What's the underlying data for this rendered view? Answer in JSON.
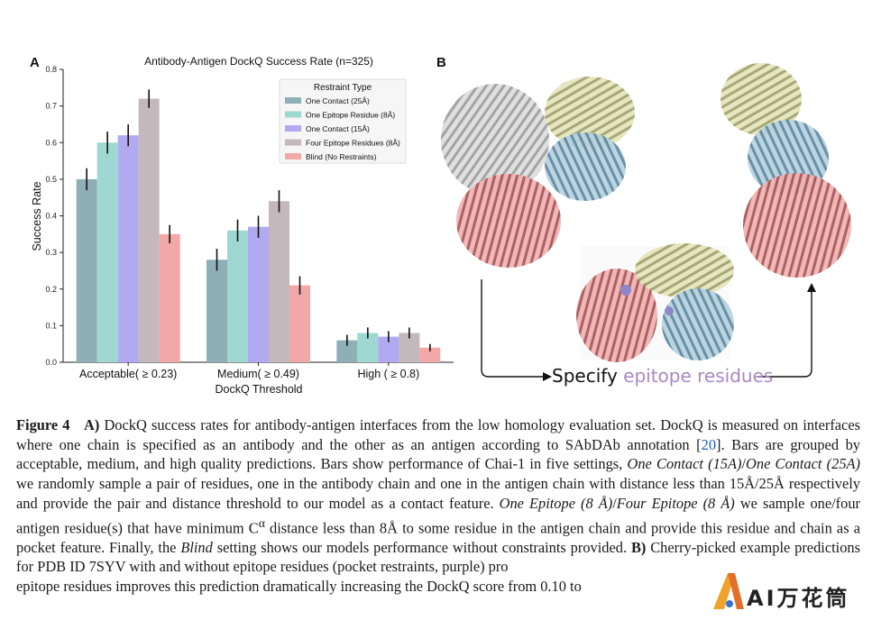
{
  "panel_a_letter": "A",
  "panel_b_letter": "B",
  "chart_data": {
    "type": "bar",
    "title": "Antibody-Antigen DockQ Success Rate (n=325)",
    "xlabel": "DockQ Threshold",
    "ylabel": "Success Rate",
    "ylim": [
      0,
      0.8
    ],
    "yticks": [
      "0.0",
      "0.1",
      "0.2",
      "0.3",
      "0.4",
      "0.5",
      "0.6",
      "0.7",
      "0.8"
    ],
    "categories": [
      "Acceptable( ≥ 0.23)",
      "Medium( ≥ 0.49)",
      "High ( ≥ 0.8)"
    ],
    "legend_title": "Restraint Type",
    "legend_position": "top-right",
    "series": [
      {
        "name": "One Contact (25Å)",
        "color": "#8fafb7",
        "values": [
          0.5,
          0.28,
          0.06
        ],
        "err": [
          0.03,
          0.03,
          0.015
        ]
      },
      {
        "name": "One Epitope Residue (8Å)",
        "color": "#9fd8d2",
        "values": [
          0.6,
          0.36,
          0.08
        ],
        "err": [
          0.03,
          0.03,
          0.015
        ]
      },
      {
        "name": "One Contact (15Å)",
        "color": "#b2aaf0",
        "values": [
          0.62,
          0.37,
          0.07
        ],
        "err": [
          0.03,
          0.03,
          0.015
        ]
      },
      {
        "name": "Four Epitope Residues (8Å)",
        "color": "#c4b8bc",
        "values": [
          0.72,
          0.44,
          0.08
        ],
        "err": [
          0.025,
          0.03,
          0.015
        ]
      },
      {
        "name": "Blind (No Restraints)",
        "color": "#f2a8a8",
        "values": [
          0.35,
          0.21,
          0.04
        ],
        "err": [
          0.025,
          0.025,
          0.01
        ]
      }
    ]
  },
  "panel_b": {
    "specify_text": "Specify ",
    "specify_accent": "epitope residues",
    "accent_color": "#a889c4"
  },
  "caption": {
    "fig_label": "Figure 4",
    "part_a": "A)",
    "t1": " DockQ success rates for antibody-antigen interfaces from the low homology evaluation set.  DockQ is measured on interfaces where one chain is specified as an antibody and the other as an antigen according to SAbDAb annotation [",
    "ref": "20",
    "t2": "]. Bars are grouped by acceptable, medium, and high quality predictions. Bars show performance of Chai-1 in five settings, ",
    "i1": "One Contact (15A)",
    "s1": "/",
    "i2": "One Contact (25A)",
    "t3": " we randomly sample a pair of residues, one in the antibody chain and one in the antigen chain with distance less than 15Å/25Å respectively and provide the pair and distance threshold to our model as a contact feature. ",
    "i3": "One Epitope (8 Å)",
    "s2": "/",
    "i4": "Four Epitope (8 Å)",
    "t4": " we sample one/four antigen residue(s) that have minimum C",
    "alpha": "α",
    "t5": " distance less than 8Å to some residue in the antigen chain and provide this residue and chain as a pocket feature. Finally, the ",
    "i5": "Blind",
    "t6": " setting shows our models performance without constraints provided. ",
    "part_b": "B)",
    "t7": " Cherry-picked example predictions for PDB ID 7SYV with and without epitope residues (pocket restraints, purple) pro",
    "t8": "epitope residues improves this prediction dramatically increasing the DockQ score from 0.10 to"
  },
  "watermark": {
    "text": "AI万花筒"
  }
}
